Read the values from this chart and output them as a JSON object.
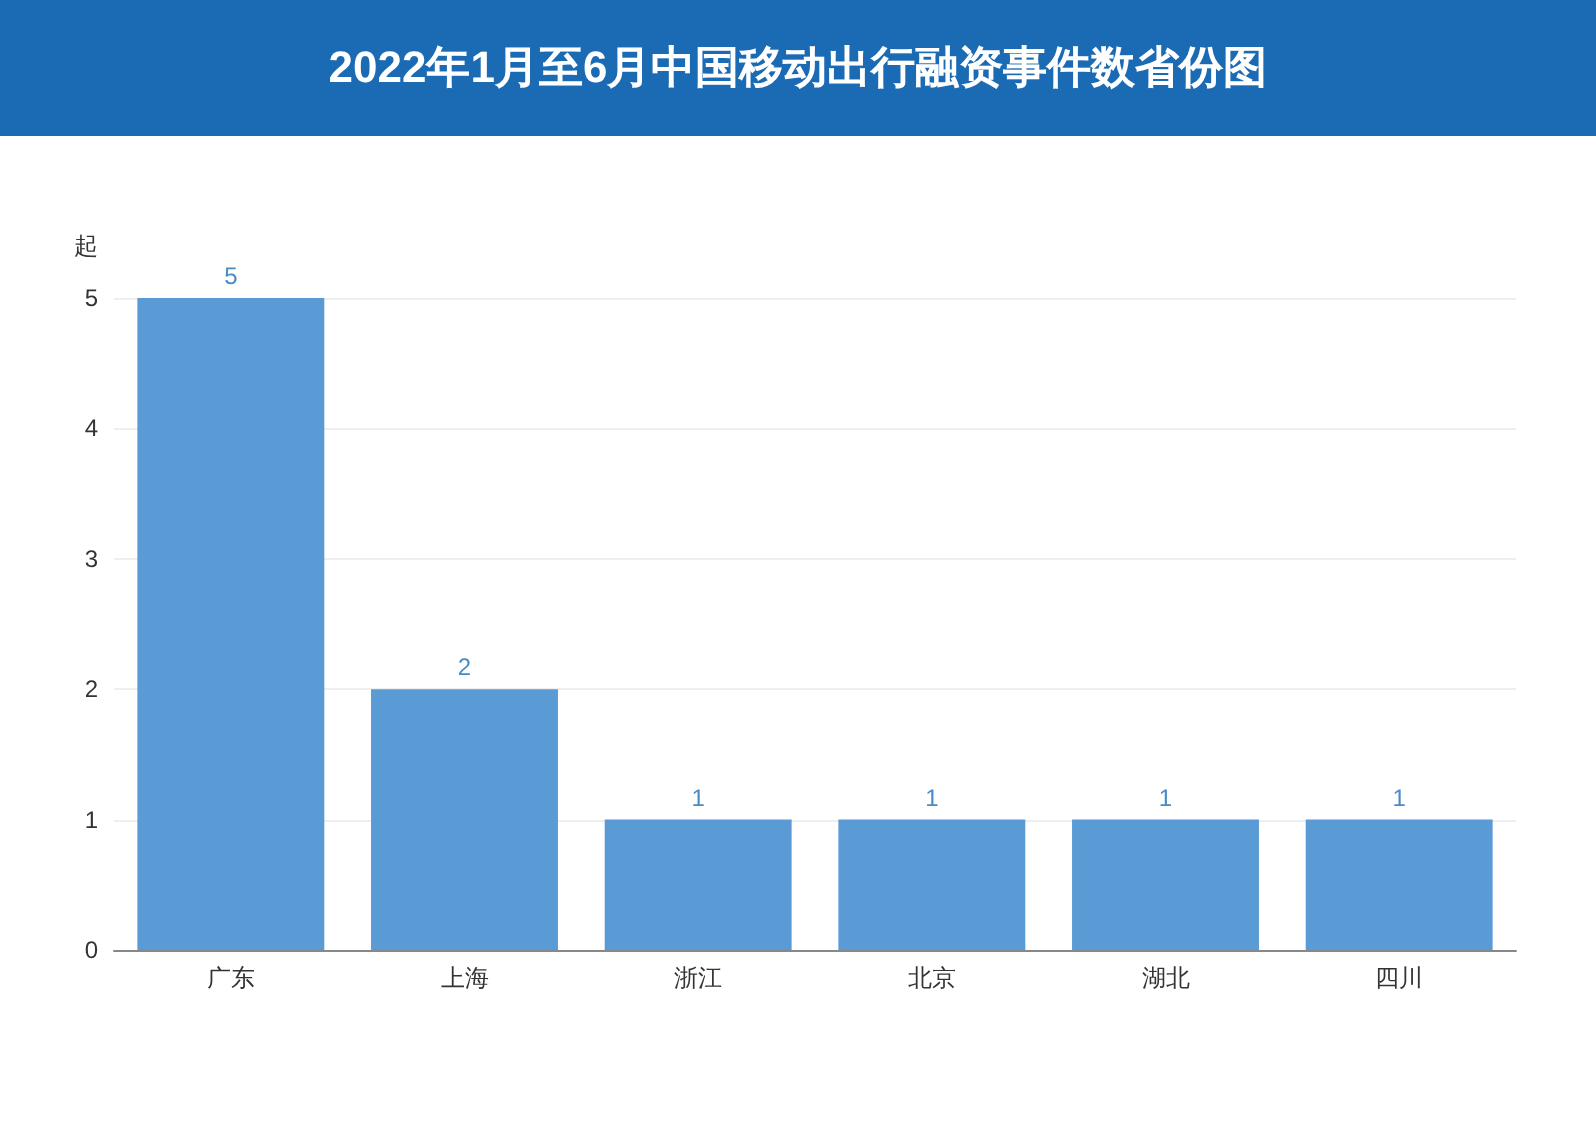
{
  "chart_data": {
    "type": "bar",
    "title": "2022年1月至6月中国移动出行融资事件数省份图",
    "ylabel": "起",
    "categories": [
      "广东",
      "上海",
      "浙江",
      "北京",
      "湖北",
      "四川"
    ],
    "values": [
      5,
      2,
      1,
      1,
      1,
      1
    ],
    "color": "#5b9bd5",
    "ylim": [
      0,
      5
    ],
    "yticks": [
      0,
      1,
      2,
      3,
      4,
      5
    ],
    "grid": "y",
    "data_labels": true
  }
}
